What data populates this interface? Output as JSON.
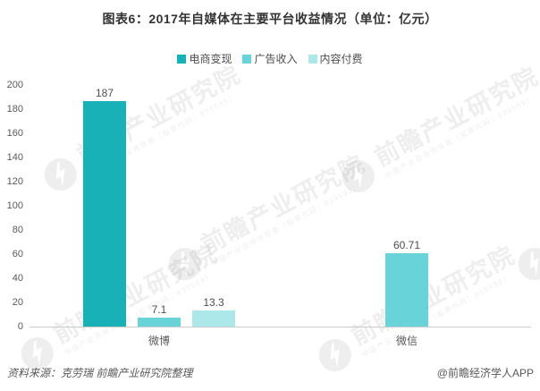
{
  "chart_data": {
    "type": "bar",
    "title": "图表6：2017年自媒体在主要平台收益情况（单位：亿元）",
    "unit_label": "单位：亿元",
    "categories": [
      "微博",
      "微信"
    ],
    "series": [
      {
        "name": "电商变现",
        "color": "#18b1b8",
        "values": [
          187,
          null
        ]
      },
      {
        "name": "广告收入",
        "color": "#68d3d9",
        "values": [
          7.1,
          60.71
        ]
      },
      {
        "name": "内容付费",
        "color": "#ace8ea",
        "values": [
          13.3,
          null
        ]
      }
    ],
    "ylim": [
      0,
      200
    ],
    "ytick_step": 20,
    "grid": false,
    "legend_position": "top",
    "bar_value_labels": [
      "187",
      "7.1",
      "13.3",
      "60.71"
    ]
  },
  "watermark": {
    "logo_text": "前瞻产业研究院",
    "sub_text": "中国产业咨询领导者（股票代码：839599）"
  },
  "footer": {
    "source": "资料来源：克劳瑞 前瞻产业研究院整理",
    "credit": "@前瞻经济学人APP"
  },
  "colors": {
    "title_text": "#333333",
    "axis_text": "#595959",
    "value_text": "#4d4d4d",
    "baseline": "#cccccc",
    "background": "#ffffff"
  }
}
